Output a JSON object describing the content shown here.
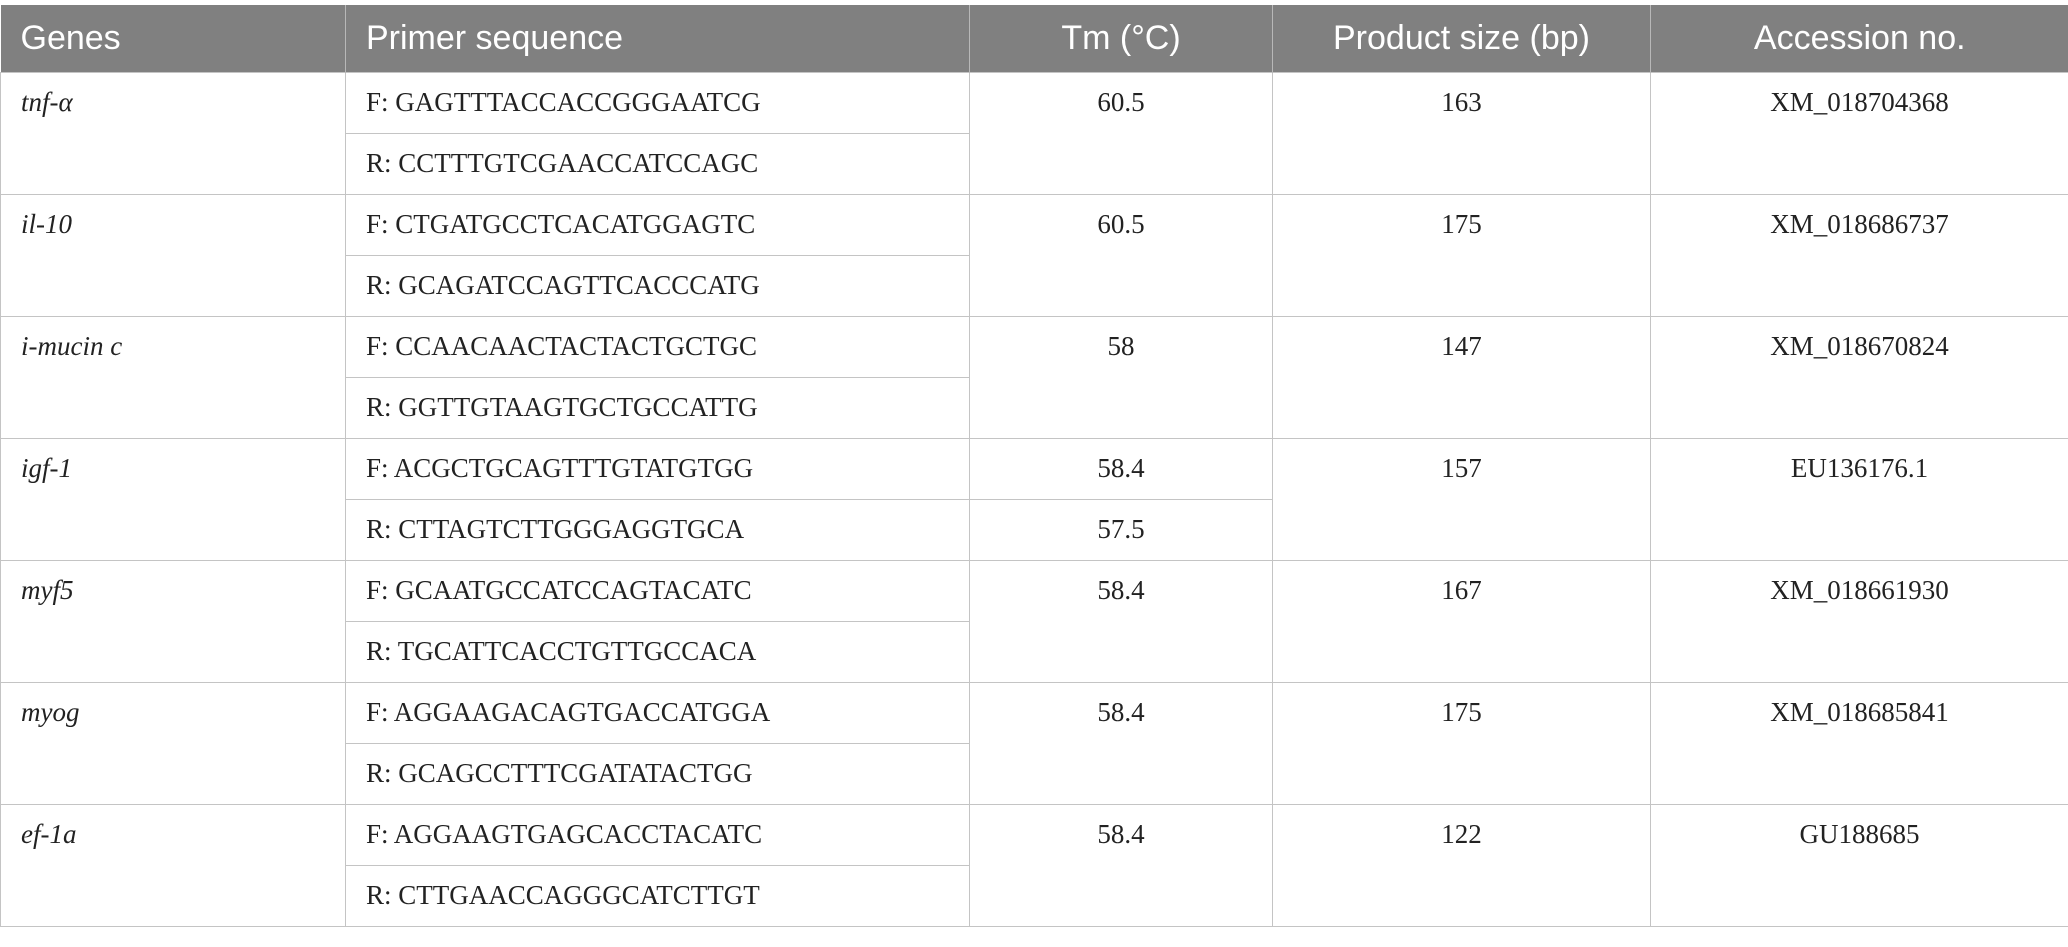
{
  "table": {
    "headers": [
      "Genes",
      "Primer sequence",
      "Tm (°C)",
      "Product size (bp)",
      "Accession no."
    ],
    "rows": [
      {
        "gene": "tnf-α",
        "forward": "F: GAGTTTACCACCGGGAATCG",
        "reverse": "R: CCTTTGTCGAACCATCCAGC",
        "tm": "60.5",
        "size": "163",
        "accession": "XM_018704368"
      },
      {
        "gene": "il-10",
        "forward": "F: CTGATGCCTCACATGGAGTC",
        "reverse": "R: GCAGATCCAGTTCACCCATG",
        "tm": "60.5",
        "size": "175",
        "accession": "XM_018686737"
      },
      {
        "gene": "i-mucin c",
        "forward": "F: CCAACAACTACTACTGCTGC",
        "reverse": "R: GGTTGTAAGTGCTGCCATTG",
        "tm": "58",
        "size": "147",
        "accession": "XM_018670824"
      },
      {
        "gene": "igf-1",
        "forward": "F: ACGCTGCAGTTTGTATGTGG",
        "reverse": "R: CTTAGTCTTGGGAGGTGCA",
        "tm_forward": "58.4",
        "tm_reverse": "57.5",
        "size": "157",
        "accession": "EU136176.1"
      },
      {
        "gene": "myf5",
        "forward": "F: GCAATGCCATCCAGTACATC",
        "reverse": "R: TGCATTCACCTGTTGCCACA",
        "tm": "58.4",
        "size": "167",
        "accession": "XM_018661930"
      },
      {
        "gene": "myog",
        "forward": "F: AGGAAGACAGTGACCATGGA",
        "reverse": "R: GCAGCCTTTCGATATACTGG",
        "tm": "58.4",
        "size": "175",
        "accession": "XM_018685841"
      },
      {
        "gene": "ef-1a",
        "forward": "F: AGGAAGTGAGCACCTACATC",
        "reverse": "R: CTTGAACCAGGGCATCTTGT",
        "tm": "58.4",
        "size": "122",
        "accession": "GU188685"
      }
    ]
  }
}
